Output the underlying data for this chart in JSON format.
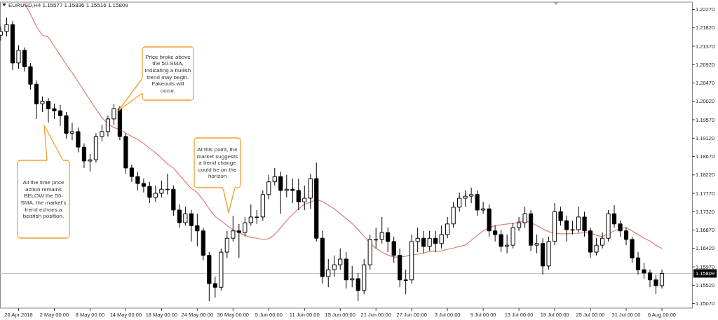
{
  "chart_data": {
    "type": "candlestick",
    "title": "EURUSD,H4 1.15577 1.15836 1.15516 1.15809",
    "color": "#000000",
    "categories": [
      null,
      null,
      null,
      "26 Apr 2018",
      null,
      null,
      null,
      null,
      null,
      "2 May 00:00",
      null,
      null,
      null,
      null,
      null,
      "8 May 00:00",
      null,
      null,
      null,
      null,
      null,
      "14 May 00:00",
      null,
      null,
      null,
      null,
      null,
      "18 May 00:00",
      null,
      null,
      null,
      null,
      null,
      "24 May 00:00",
      null,
      null,
      null,
      null,
      null,
      "30 May 00:00",
      null,
      null,
      null,
      null,
      null,
      "5 Jun 00:00",
      null,
      null,
      null,
      null,
      null,
      "11 Jun 00:00",
      null,
      null,
      null,
      null,
      null,
      "15 Jun 00:00",
      null,
      null,
      null,
      null,
      null,
      "21 Jun 00:00",
      null,
      null,
      null,
      null,
      null,
      "27 Jun 00:00",
      null,
      null,
      null,
      null,
      null,
      "3 Jul 00:00",
      null,
      null,
      null,
      null,
      null,
      "9 Jul 00:00",
      null,
      null,
      null,
      null,
      null,
      "13 Jul 00:00",
      null,
      null,
      null,
      null,
      null,
      "19 Jul 00:00",
      null,
      null,
      null,
      null,
      null,
      "25 Jul 00:00",
      null,
      null,
      null,
      null,
      null,
      "31 Jul 00:00",
      null,
      null,
      null,
      null,
      null,
      "6 Aug 00:00"
    ],
    "ohlc": [
      [
        1.2164,
        1.2185,
        1.2151,
        1.2173
      ],
      [
        1.2173,
        1.2207,
        1.2161,
        1.219
      ],
      [
        1.219,
        1.2199,
        1.2079,
        1.2096
      ],
      [
        1.2096,
        1.2139,
        1.2082,
        1.2127
      ],
      [
        1.2127,
        1.2134,
        1.2075,
        1.2087
      ],
      [
        1.2087,
        1.2096,
        1.2031,
        1.2044
      ],
      [
        1.2044,
        1.2053,
        1.1959,
        1.1996
      ],
      [
        1.1996,
        1.2014,
        1.1976,
        1.2002
      ],
      [
        1.2002,
        1.201,
        1.195,
        1.1984
      ],
      [
        1.1984,
        1.1996,
        1.1959,
        1.1979
      ],
      [
        1.1979,
        1.1993,
        1.1942,
        1.1967
      ],
      [
        1.1967,
        1.1976,
        1.1911,
        1.1924
      ],
      [
        1.1924,
        1.195,
        1.1907,
        1.1928
      ],
      [
        1.1928,
        1.1938,
        1.1877,
        1.189
      ],
      [
        1.189,
        1.1899,
        1.1839,
        1.1856
      ],
      [
        1.1856,
        1.1873,
        1.183,
        1.1859
      ],
      [
        1.1859,
        1.1924,
        1.1852,
        1.1916
      ],
      [
        1.1916,
        1.1945,
        1.1904,
        1.1928
      ],
      [
        1.1928,
        1.1967,
        1.1916,
        1.1959
      ],
      [
        1.1959,
        1.1996,
        1.1945,
        1.1984
      ],
      [
        1.1984,
        1.199,
        1.1907,
        1.1916
      ],
      [
        1.1916,
        1.1924,
        1.1825,
        1.1839
      ],
      [
        1.1839,
        1.1847,
        1.1805,
        1.1818
      ],
      [
        1.1818,
        1.183,
        1.1784,
        1.1801
      ],
      [
        1.1801,
        1.1813,
        1.1779,
        1.1794
      ],
      [
        1.1794,
        1.1805,
        1.1753,
        1.1767
      ],
      [
        1.1767,
        1.1796,
        1.1756,
        1.1777
      ],
      [
        1.1777,
        1.1808,
        1.1767,
        1.1787
      ],
      [
        1.1787,
        1.1825,
        1.1774,
        1.1787
      ],
      [
        1.1787,
        1.1796,
        1.1722,
        1.1736
      ],
      [
        1.1736,
        1.175,
        1.1693,
        1.1705
      ],
      [
        1.1705,
        1.1744,
        1.1698,
        1.1727
      ],
      [
        1.1727,
        1.1736,
        1.1659,
        1.1698
      ],
      [
        1.1698,
        1.1727,
        1.1647,
        1.1685
      ],
      [
        1.1685,
        1.1693,
        1.1613,
        1.1625
      ],
      [
        1.1625,
        1.1633,
        1.1513,
        1.1556
      ],
      [
        1.1556,
        1.1573,
        1.1522,
        1.1547
      ],
      [
        1.1547,
        1.1642,
        1.1539,
        1.1633
      ],
      [
        1.1633,
        1.1685,
        1.1619,
        1.1667
      ],
      [
        1.1667,
        1.1722,
        1.1659,
        1.1685
      ],
      [
        1.1685,
        1.1702,
        1.1619,
        1.1681
      ],
      [
        1.1681,
        1.1719,
        1.1671,
        1.1705
      ],
      [
        1.1705,
        1.175,
        1.1698,
        1.1719
      ],
      [
        1.1719,
        1.1736,
        1.1702,
        1.1719
      ],
      [
        1.1719,
        1.1784,
        1.171,
        1.1774
      ],
      [
        1.1774,
        1.1822,
        1.1762,
        1.1805
      ],
      [
        1.1805,
        1.1839,
        1.1796,
        1.1818
      ],
      [
        1.1818,
        1.183,
        1.1727,
        1.1784
      ],
      [
        1.1784,
        1.1822,
        1.1767,
        1.1787
      ],
      [
        1.1787,
        1.1813,
        1.1753,
        1.1784
      ],
      [
        1.1784,
        1.1813,
        1.1736,
        1.1756
      ],
      [
        1.1756,
        1.1796,
        1.1736,
        1.1765
      ],
      [
        1.1765,
        1.1825,
        1.1739,
        1.1813
      ],
      [
        1.1813,
        1.1852,
        1.1659,
        1.1667
      ],
      [
        1.1667,
        1.1685,
        1.1556,
        1.1573
      ],
      [
        1.1573,
        1.1616,
        1.1547,
        1.159
      ],
      [
        1.159,
        1.1625,
        1.1573,
        1.1602
      ],
      [
        1.1602,
        1.1642,
        1.159,
        1.1616
      ],
      [
        1.1616,
        1.1633,
        1.1544,
        1.1565
      ],
      [
        1.1565,
        1.1599,
        1.1547,
        1.1568
      ],
      [
        1.1568,
        1.1582,
        1.1513,
        1.1539
      ],
      [
        1.1539,
        1.1616,
        1.153,
        1.1602
      ],
      [
        1.1602,
        1.1676,
        1.159,
        1.1664
      ],
      [
        1.1664,
        1.1693,
        1.1642,
        1.1664
      ],
      [
        1.1664,
        1.1719,
        1.1654,
        1.1681
      ],
      [
        1.1681,
        1.1693,
        1.1633,
        1.1659
      ],
      [
        1.1659,
        1.1671,
        1.1607,
        1.1625
      ],
      [
        1.1625,
        1.1642,
        1.1547,
        1.1565
      ],
      [
        1.1565,
        1.159,
        1.153,
        1.1565
      ],
      [
        1.1565,
        1.1676,
        1.1556,
        1.1659
      ],
      [
        1.1659,
        1.1693,
        1.1633,
        1.1667
      ],
      [
        1.1667,
        1.1685,
        1.163,
        1.1647
      ],
      [
        1.1647,
        1.1685,
        1.1636,
        1.1667
      ],
      [
        1.1667,
        1.1685,
        1.1633,
        1.1654
      ],
      [
        1.1654,
        1.1698,
        1.1642,
        1.1676
      ],
      [
        1.1676,
        1.1719,
        1.1667,
        1.1702
      ],
      [
        1.1702,
        1.1756,
        1.1693,
        1.1743
      ],
      [
        1.1743,
        1.1779,
        1.1732,
        1.1765
      ],
      [
        1.1765,
        1.1784,
        1.1744,
        1.177
      ],
      [
        1.177,
        1.1791,
        1.1753,
        1.1774
      ],
      [
        1.1774,
        1.1784,
        1.1722,
        1.1736
      ],
      [
        1.1736,
        1.1756,
        1.1727,
        1.1739
      ],
      [
        1.1739,
        1.175,
        1.1671,
        1.1685
      ],
      [
        1.1685,
        1.1698,
        1.1659,
        1.1676
      ],
      [
        1.1676,
        1.1688,
        1.1633,
        1.1647
      ],
      [
        1.1647,
        1.1676,
        1.163,
        1.165
      ],
      [
        1.165,
        1.1705,
        1.1642,
        1.1693
      ],
      [
        1.1693,
        1.1719,
        1.1685,
        1.1705
      ],
      [
        1.1705,
        1.1744,
        1.1693,
        1.1727
      ],
      [
        1.1727,
        1.1736,
        1.1636,
        1.165
      ],
      [
        1.165,
        1.1676,
        1.163,
        1.1654
      ],
      [
        1.1654,
        1.1667,
        1.1578,
        1.1599
      ],
      [
        1.1599,
        1.1671,
        1.159,
        1.1659
      ],
      [
        1.1659,
        1.1753,
        1.165,
        1.1732
      ],
      [
        1.1732,
        1.1744,
        1.1698,
        1.171
      ],
      [
        1.171,
        1.1722,
        1.1659,
        1.1688
      ],
      [
        1.1688,
        1.171,
        1.1676,
        1.1688
      ],
      [
        1.1688,
        1.1744,
        1.1681,
        1.1719
      ],
      [
        1.1719,
        1.1732,
        1.1671,
        1.1685
      ],
      [
        1.1685,
        1.1693,
        1.1619,
        1.1633
      ],
      [
        1.1633,
        1.1667,
        1.1625,
        1.165
      ],
      [
        1.165,
        1.1681,
        1.1642,
        1.1667
      ],
      [
        1.1667,
        1.1736,
        1.1659,
        1.1727
      ],
      [
        1.1727,
        1.1748,
        1.1693,
        1.1702
      ],
      [
        1.1702,
        1.171,
        1.1671,
        1.1685
      ],
      [
        1.1685,
        1.1693,
        1.165,
        1.1664
      ],
      [
        1.1664,
        1.1671,
        1.1607,
        1.1619
      ],
      [
        1.1619,
        1.1633,
        1.1578,
        1.159
      ],
      [
        1.159,
        1.1607,
        1.1568,
        1.1582
      ],
      [
        1.1582,
        1.159,
        1.1547,
        1.1565
      ],
      [
        1.1565,
        1.1578,
        1.153,
        1.1551
      ],
      [
        1.1551,
        1.159,
        1.1544,
        1.1581
      ]
    ],
    "series": [
      {
        "type": "line",
        "color": "#e07b6f",
        "values": [
          null,
          null,
          null,
          null,
          1.2241,
          1.2216,
          1.2185,
          1.2164,
          1.2159,
          1.2137,
          1.2115,
          1.2092,
          1.2072,
          1.205,
          1.2027,
          1.2005,
          1.1983,
          1.1962,
          1.1947,
          1.1938,
          1.1933,
          1.1924,
          1.1916,
          1.1909,
          1.1899,
          1.1887,
          1.1876,
          1.1863,
          1.1849,
          1.1839,
          1.1822,
          1.1805,
          1.1789,
          1.1779,
          1.176,
          1.1739,
          1.172,
          1.171,
          1.1698,
          1.1688,
          1.1681,
          1.1674,
          1.1669,
          1.1667,
          1.1664,
          1.1666,
          1.1676,
          1.1693,
          1.171,
          1.1725,
          1.1739,
          1.175,
          1.1755,
          1.1762,
          1.1757,
          1.1748,
          1.1739,
          1.1727,
          1.1715,
          1.1703,
          1.1688,
          1.1672,
          1.1655,
          1.1642,
          1.1633,
          1.1626,
          1.1621,
          1.1621,
          1.1623,
          1.1626,
          1.1628,
          1.1631,
          1.1635,
          1.1635,
          1.1636,
          1.164,
          1.1643,
          1.1647,
          1.165,
          1.1662,
          1.1674,
          1.1685,
          1.1693,
          1.1698,
          1.17,
          1.1702,
          1.1703,
          1.1707,
          1.171,
          1.1705,
          1.1698,
          1.169,
          1.1683,
          1.1679,
          1.1678,
          1.1678,
          1.1679,
          1.1679,
          1.1681,
          1.1681,
          1.1674,
          1.1671,
          1.1678,
          1.1685,
          1.1691,
          1.1693,
          1.1685,
          1.1676,
          1.1667,
          1.166,
          1.165,
          1.1642
        ]
      }
    ],
    "ylim": [
      1.1496,
      1.2245
    ],
    "yticks": [
      {
        "value": 1.2227,
        "label": "1.22270"
      },
      {
        "value": 1.2182,
        "label": "1.21820"
      },
      {
        "value": 1.2137,
        "label": "1.21370"
      },
      {
        "value": 1.2092,
        "label": "1.20920"
      },
      {
        "value": 1.2047,
        "label": "1.20470"
      },
      {
        "value": 1.2002,
        "label": "1.20020"
      },
      {
        "value": 1.1957,
        "label": "1.19570"
      },
      {
        "value": 1.1912,
        "label": "1.19120"
      },
      {
        "value": 1.1867,
        "label": "1.18670"
      },
      {
        "value": 1.1822,
        "label": "1.18220"
      },
      {
        "value": 1.1777,
        "label": "1.17770"
      },
      {
        "value": 1.1732,
        "label": "1.17320"
      },
      {
        "value": 1.1687,
        "label": "1.16870"
      },
      {
        "value": 1.1642,
        "label": "1.16420"
      },
      {
        "value": 1.1597,
        "label": "1.15970"
      },
      {
        "value": 1.1552,
        "label": "1.15520"
      },
      {
        "value": 1.1507,
        "label": "1.15070"
      }
    ],
    "ref_lines": [
      {
        "axis": "y",
        "value": 1.15809,
        "label": "1.15809",
        "color": "#c0c0c0"
      }
    ],
    "annotations": [
      "All the time price action remains BELOW the 50-SMA, the market's trend echoes a bearish position.",
      "Price broke above the 50-SMA, indicating a bullish trend may begin. Fakeouts will occur.",
      "At this point, the market suggests a trend change could be on the horizon"
    ]
  }
}
